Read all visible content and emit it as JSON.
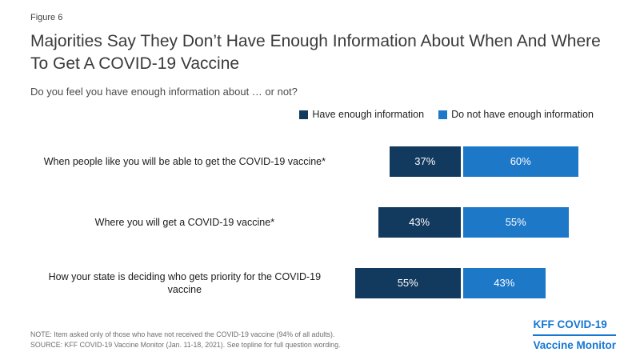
{
  "figure_label": "Figure 6",
  "title": "Majorities Say They Don’t Have Enough Information About When And Where To Get A COVID-19 Vaccine",
  "subtitle": "Do you feel you have enough information about … or not?",
  "colors": {
    "have_enough": "#12395e",
    "not_enough": "#1e78c8",
    "logo_blue": "#1576d2"
  },
  "chart_data": {
    "type": "bar",
    "orientation": "horizontal-diverging-stacked",
    "categories": [
      "When people like you will be able to get the COVID-19 vaccine*",
      "Where you will get a COVID-19 vaccine*",
      "How your state is deciding who gets priority for the COVID-19 vaccine"
    ],
    "series": [
      {
        "name": "Have enough information",
        "color": "#12395e",
        "values": [
          37,
          43,
          55
        ]
      },
      {
        "name": "Do not have enough information",
        "color": "#1e78c8",
        "values": [
          60,
          55,
          43
        ]
      }
    ],
    "value_format": "percent",
    "legend_position": "top-right",
    "grid": false
  },
  "notes": {
    "note": "NOTE: Item asked only of those who have not received the COVID-19 vaccine (94% of all adults).",
    "source": "SOURCE: KFF COVID-19 Vaccine Monitor (Jan. 11-18, 2021). See topline for full question wording."
  },
  "logo": {
    "line1": "KFF COVID-19",
    "line2": "Vaccine Monitor"
  }
}
